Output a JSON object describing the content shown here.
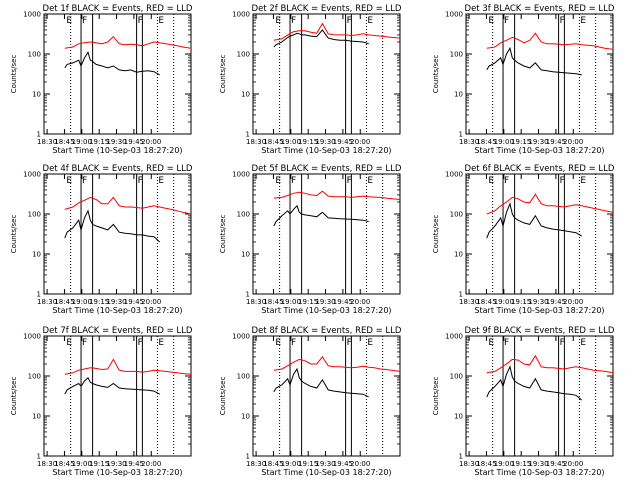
{
  "chart_data": {
    "type": "line",
    "x_ticks": [
      "18:30",
      "18:45",
      "19:00",
      "19:15",
      "19:30",
      "19:45",
      "20:00"
    ],
    "xlabel": "Start Time (10-Sep-03 18:27:20)",
    "ylabel": "Counts/sec",
    "yscale": "log",
    "ylim": [
      1,
      1000
    ],
    "y_ticks": [
      "1",
      "10",
      "100",
      "1000"
    ],
    "series_colors": {
      "events": "#000000",
      "lld": "#ff0000"
    },
    "flags": [
      {
        "label": "E",
        "minute": 18.5
      },
      {
        "label": "F",
        "minute": 32
      },
      {
        "label": "F",
        "minute": 80
      },
      {
        "label": "E",
        "minute": 98
      }
    ],
    "solid_markers_min": [
      32,
      42,
      80,
      85
    ],
    "dotted_markers_min": [
      23,
      98,
      112
    ],
    "panels": [
      {
        "title": "Det 1f BLACK = Events, RED = LLD",
        "series": [
          {
            "key": "lld",
            "x": [
              18,
              25,
              30,
              35,
              40,
              45,
              50,
              55,
              60,
              65,
              70,
              75,
              80,
              85,
              90,
              95,
              100,
              105,
              110,
              115,
              120,
              127
            ],
            "values": [
              140,
              150,
              180,
              190,
              200,
              190,
              180,
              200,
              270,
              180,
              170,
              175,
              170,
              160,
              180,
              200,
              190,
              180,
              170,
              160,
              150,
              140
            ]
          },
          {
            "key": "events",
            "x": [
              18,
              20,
              25,
              30,
              32,
              35,
              38,
              40,
              42,
              45,
              50,
              55,
              60,
              65,
              70,
              75,
              80,
              85,
              90,
              95,
              100
            ],
            "values": [
              45,
              55,
              60,
              70,
              50,
              80,
              110,
              70,
              65,
              55,
              50,
              45,
              50,
              40,
              38,
              40,
              35,
              37,
              38,
              36,
              30
            ]
          }
        ]
      },
      {
        "title": "Det 2f BLACK = Events, RED = LLD",
        "series": [
          {
            "key": "lld",
            "x": [
              18,
              25,
              30,
              35,
              40,
              45,
              50,
              55,
              60,
              65,
              70,
              75,
              80,
              85,
              90,
              95,
              100,
              105,
              110,
              115,
              120,
              127
            ],
            "values": [
              220,
              240,
              300,
              360,
              380,
              380,
              350,
              330,
              580,
              320,
              300,
              300,
              300,
              290,
              300,
              320,
              300,
              290,
              280,
              270,
              260,
              250
            ]
          },
          {
            "key": "events",
            "x": [
              18,
              20,
              25,
              30,
              32,
              35,
              38,
              40,
              42,
              45,
              50,
              55,
              60,
              65,
              70,
              75,
              80,
              85,
              90,
              95,
              100
            ],
            "values": [
              150,
              170,
              200,
              260,
              280,
              300,
              330,
              320,
              300,
              300,
              280,
              270,
              400,
              250,
              230,
              220,
              220,
              210,
              205,
              200,
              180
            ]
          }
        ]
      },
      {
        "title": "Det 3f BLACK = Events, RED = LLD",
        "series": [
          {
            "key": "lld",
            "x": [
              18,
              25,
              30,
              35,
              40,
              45,
              50,
              55,
              60,
              65,
              70,
              75,
              80,
              85,
              90,
              95,
              100,
              105,
              110,
              115,
              120,
              127
            ],
            "values": [
              140,
              150,
              190,
              220,
              260,
              230,
              190,
              220,
              330,
              200,
              180,
              180,
              175,
              170,
              175,
              180,
              170,
              165,
              160,
              150,
              140,
              130
            ]
          },
          {
            "key": "events",
            "x": [
              18,
              20,
              25,
              30,
              32,
              35,
              38,
              40,
              42,
              45,
              50,
              55,
              60,
              65,
              70,
              75,
              80,
              85,
              90,
              95,
              100
            ],
            "values": [
              40,
              50,
              60,
              80,
              55,
              100,
              140,
              80,
              70,
              60,
              50,
              45,
              60,
              40,
              38,
              36,
              35,
              34,
              33,
              32,
              30
            ]
          }
        ]
      },
      {
        "title": "Det 4f BLACK = Events, RED = LLD",
        "series": [
          {
            "key": "lld",
            "x": [
              18,
              25,
              30,
              35,
              40,
              45,
              50,
              55,
              60,
              65,
              70,
              75,
              80,
              85,
              90,
              95,
              100,
              105,
              110,
              115,
              120,
              127
            ],
            "values": [
              130,
              150,
              190,
              220,
              260,
              230,
              180,
              180,
              260,
              160,
              150,
              150,
              145,
              140,
              150,
              160,
              150,
              140,
              130,
              120,
              110,
              100
            ]
          },
          {
            "key": "events",
            "x": [
              18,
              20,
              25,
              30,
              32,
              35,
              38,
              40,
              42,
              45,
              50,
              55,
              60,
              65,
              70,
              75,
              80,
              85,
              90,
              95,
              100
            ],
            "values": [
              25,
              35,
              45,
              70,
              40,
              80,
              120,
              70,
              55,
              50,
              45,
              40,
              55,
              35,
              33,
              32,
              30,
              30,
              28,
              27,
              20
            ]
          }
        ]
      },
      {
        "title": "Det 5f BLACK = Events, RED = LLD",
        "series": [
          {
            "key": "lld",
            "x": [
              18,
              25,
              30,
              35,
              40,
              45,
              50,
              55,
              60,
              65,
              70,
              75,
              80,
              85,
              90,
              95,
              100,
              105,
              110,
              115,
              120,
              127
            ],
            "values": [
              250,
              260,
              290,
              330,
              350,
              330,
              300,
              290,
              370,
              280,
              270,
              270,
              270,
              260,
              270,
              280,
              270,
              265,
              260,
              250,
              240,
              230
            ]
          },
          {
            "key": "events",
            "x": [
              18,
              20,
              25,
              30,
              32,
              35,
              38,
              40,
              42,
              45,
              50,
              55,
              60,
              65,
              70,
              75,
              80,
              85,
              90,
              95,
              100
            ],
            "values": [
              50,
              65,
              90,
              120,
              100,
              130,
              160,
              110,
              100,
              95,
              90,
              85,
              110,
              80,
              78,
              76,
              75,
              74,
              72,
              70,
              65
            ]
          }
        ]
      },
      {
        "title": "Det 6f BLACK = Events, RED = LLD",
        "series": [
          {
            "key": "lld",
            "x": [
              18,
              25,
              30,
              35,
              40,
              45,
              50,
              55,
              60,
              65,
              70,
              75,
              80,
              85,
              90,
              95,
              100,
              105,
              110,
              115,
              120,
              127
            ],
            "values": [
              100,
              120,
              160,
              200,
              260,
              240,
              200,
              190,
              310,
              180,
              160,
              160,
              155,
              150,
              160,
              170,
              160,
              150,
              140,
              130,
              120,
              110
            ]
          },
          {
            "key": "events",
            "x": [
              18,
              20,
              25,
              30,
              32,
              35,
              38,
              40,
              42,
              45,
              50,
              55,
              60,
              65,
              70,
              75,
              80,
              85,
              90,
              95,
              100
            ],
            "values": [
              25,
              35,
              50,
              80,
              50,
              110,
              180,
              100,
              80,
              70,
              60,
              55,
              90,
              50,
              45,
              42,
              40,
              38,
              36,
              34,
              28
            ]
          }
        ]
      },
      {
        "title": "Det 7f BLACK = Events, RED = LLD",
        "series": [
          {
            "key": "lld",
            "x": [
              18,
              25,
              30,
              35,
              40,
              45,
              50,
              55,
              60,
              65,
              70,
              75,
              80,
              85,
              90,
              95,
              100,
              105,
              110,
              115,
              120,
              127
            ],
            "values": [
              110,
              120,
              140,
              150,
              160,
              155,
              145,
              150,
              260,
              140,
              130,
              130,
              130,
              125,
              130,
              140,
              135,
              130,
              125,
              120,
              115,
              110
            ]
          },
          {
            "key": "events",
            "x": [
              18,
              20,
              25,
              30,
              32,
              35,
              38,
              40,
              42,
              45,
              50,
              55,
              60,
              65,
              70,
              75,
              80,
              85,
              90,
              95,
              100
            ],
            "values": [
              35,
              45,
              55,
              65,
              55,
              75,
              90,
              70,
              65,
              60,
              55,
              52,
              65,
              50,
              48,
              47,
              46,
              45,
              44,
              42,
              35
            ]
          }
        ]
      },
      {
        "title": "Det 8f BLACK = Events, RED = LLD",
        "series": [
          {
            "key": "lld",
            "x": [
              18,
              25,
              30,
              35,
              40,
              45,
              50,
              55,
              60,
              65,
              70,
              75,
              80,
              85,
              90,
              95,
              100,
              105,
              110,
              115,
              120,
              127
            ],
            "values": [
              140,
              150,
              180,
              220,
              260,
              240,
              200,
              200,
              300,
              180,
              170,
              170,
              165,
              160,
              165,
              175,
              165,
              160,
              150,
              145,
              140,
              130
            ]
          },
          {
            "key": "events",
            "x": [
              18,
              20,
              25,
              30,
              32,
              35,
              38,
              40,
              42,
              45,
              50,
              55,
              60,
              65,
              70,
              75,
              80,
              85,
              90,
              95,
              100
            ],
            "values": [
              40,
              50,
              60,
              85,
              60,
              110,
              150,
              90,
              75,
              65,
              55,
              50,
              80,
              45,
              42,
              40,
              38,
              37,
              36,
              35,
              30
            ]
          }
        ]
      },
      {
        "title": "Det 9f BLACK = Events, RED = LLD",
        "series": [
          {
            "key": "lld",
            "x": [
              18,
              25,
              30,
              35,
              40,
              45,
              50,
              55,
              60,
              65,
              70,
              75,
              80,
              85,
              90,
              95,
              100,
              105,
              110,
              115,
              120,
              127
            ],
            "values": [
              120,
              130,
              160,
              200,
              260,
              250,
              200,
              190,
              320,
              170,
              160,
              160,
              155,
              150,
              160,
              170,
              160,
              150,
              140,
              135,
              130,
              120
            ]
          },
          {
            "key": "events",
            "x": [
              18,
              20,
              25,
              30,
              32,
              35,
              38,
              40,
              42,
              45,
              50,
              55,
              60,
              65,
              70,
              75,
              80,
              85,
              90,
              95,
              100
            ],
            "values": [
              30,
              40,
              55,
              80,
              55,
              110,
              170,
              95,
              75,
              65,
              55,
              50,
              85,
              45,
              42,
              40,
              38,
              36,
              35,
              33,
              25
            ]
          }
        ]
      }
    ]
  }
}
